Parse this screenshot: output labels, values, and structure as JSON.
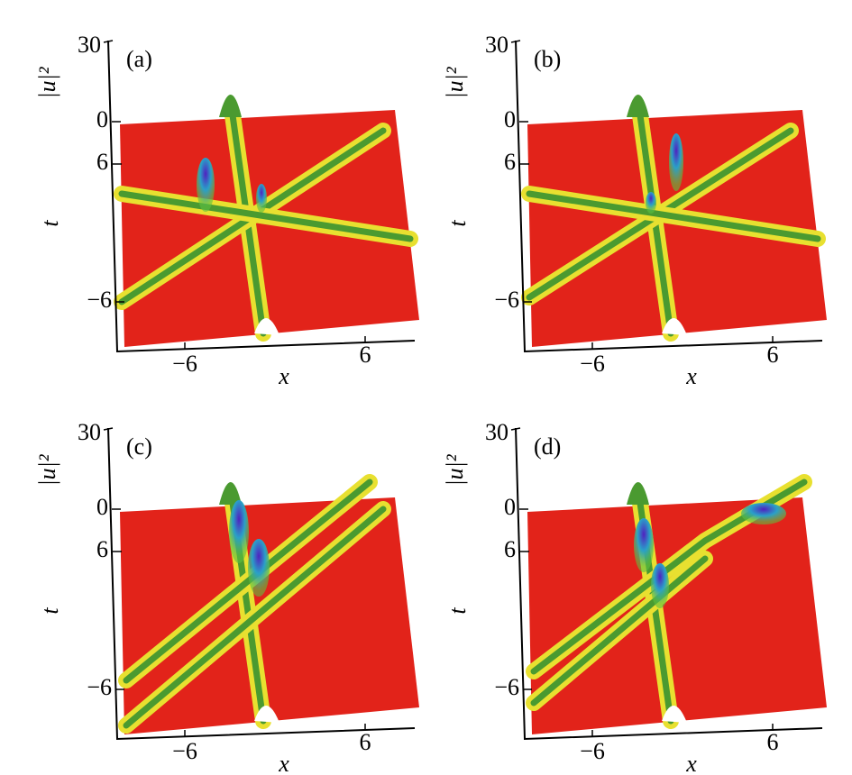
{
  "panels": [
    {
      "label": "(a)",
      "zlabel": "|u|²",
      "ylabel": "t",
      "xlabel": "x",
      "zticks": [
        "30",
        "0"
      ],
      "yticks": [
        "6",
        "−6"
      ],
      "xticks": [
        "−6",
        "6"
      ]
    },
    {
      "label": "(b)",
      "zlabel": "|u|²",
      "ylabel": "t",
      "xlabel": "x",
      "zticks": [
        "30",
        "0"
      ],
      "yticks": [
        "6",
        "−6"
      ],
      "xticks": [
        "−6",
        "6"
      ]
    },
    {
      "label": "(c)",
      "zlabel": "|u|²",
      "ylabel": "t",
      "xlabel": "x",
      "zticks": [
        "30",
        "0"
      ],
      "yticks": [
        "6",
        "−6"
      ],
      "xticks": [
        "−6",
        "6"
      ]
    },
    {
      "label": "(d)",
      "zlabel": "|u|²",
      "ylabel": "t",
      "xlabel": "x",
      "zticks": [
        "30",
        "0"
      ],
      "yticks": [
        "6",
        "−6"
      ],
      "xticks": [
        "−6",
        "6"
      ]
    }
  ]
}
